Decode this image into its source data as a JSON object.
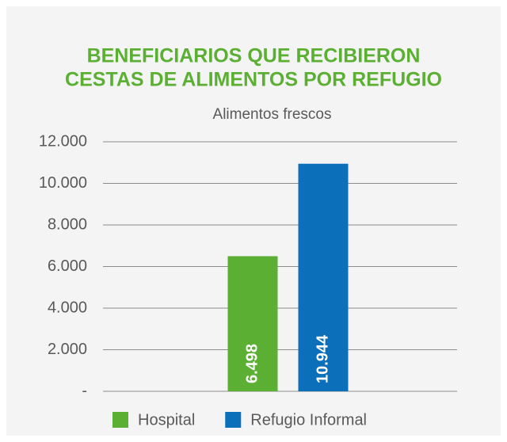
{
  "chart_data": {
    "type": "bar",
    "title": [
      "BENEFICIARIOS QUE RECIBIERON",
      "CESTAS DE ALIMENTOS POR REFUGIO"
    ],
    "categories": [
      "Alimentos frescos"
    ],
    "series": [
      {
        "name": "Hospital",
        "color": "#5bb033",
        "values": [
          6498
        ],
        "value_labels": [
          "6.498"
        ]
      },
      {
        "name": "Refugio Informal",
        "color": "#0b6fba",
        "values": [
          10944
        ],
        "value_labels": [
          "10.944"
        ]
      }
    ],
    "ylim": [
      0,
      12000
    ],
    "yticks": [
      {
        "value": 0,
        "label": "-"
      },
      {
        "value": 2000,
        "label": "2.000"
      },
      {
        "value": 4000,
        "label": "4.000"
      },
      {
        "value": 6000,
        "label": "6.000"
      },
      {
        "value": 8000,
        "label": "8.000"
      },
      {
        "value": 10000,
        "label": "10.000"
      },
      {
        "value": 12000,
        "label": "12.000"
      }
    ],
    "grid": true,
    "legend": "bottom"
  }
}
